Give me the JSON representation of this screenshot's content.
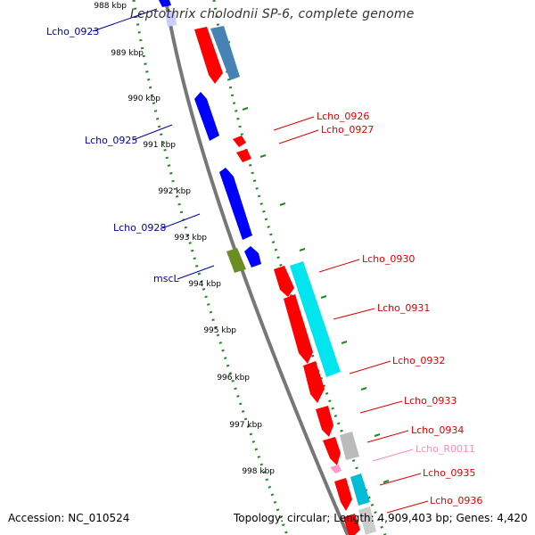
{
  "title": "Leptothrix cholodnii SP-6, complete genome",
  "footer": {
    "accession": "Accession: NC_010524",
    "summary": "Topology: circular; Length: 4,909,403 bp; Genes: 4,420"
  },
  "colors": {
    "forward_cds": "#ff0000",
    "reverse_cds": "#0000ff",
    "rna": "#ff99cc",
    "label_red": "#e00000",
    "label_blue": "#0000a0",
    "label_pink": "#ff88bb",
    "scale_dots": "#228822",
    "backbone": "#777777"
  },
  "scale_labels": [
    "988 kbp",
    "989 kbp",
    "990 kbp",
    "991 kbp",
    "992 kbp",
    "993 kbp",
    "994 kbp",
    "995 kbp",
    "996 kbp",
    "997 kbp",
    "998 kbp"
  ],
  "gene_labels": [
    "Lcho_0923",
    "Lcho_0925",
    "Lcho_0928",
    "mscL",
    "Lcho_0926",
    "Lcho_0927",
    "Lcho_0930",
    "Lcho_0931",
    "Lcho_0932",
    "Lcho_0933",
    "Lcho_0934",
    "Lcho_R0011",
    "Lcho_0935",
    "Lcho_0936"
  ]
}
